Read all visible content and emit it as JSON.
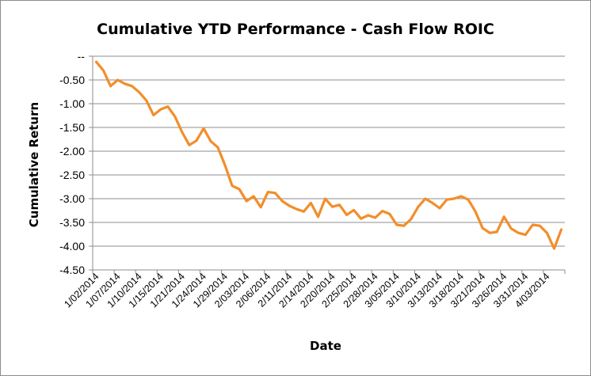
{
  "chart_data": {
    "type": "line",
    "title": "Cumulative YTD Performance - Cash Flow ROIC",
    "xlabel": "Date",
    "ylabel": "Cumulative Return",
    "ylim": [
      -4.5,
      0
    ],
    "y_ticks": [
      0,
      -0.5,
      -1,
      -1.5,
      -2,
      -2.5,
      -3,
      -3.5,
      -4,
      -4.5
    ],
    "y_tick_labels": [
      "--",
      "-0.50",
      "-1.00",
      "-1.50",
      "-2.00",
      "-2.50",
      "-3.00",
      "-3.50",
      "-4.00",
      "-4.50"
    ],
    "x_tick_labels": [
      "1/02/2014",
      "1/07/2014",
      "1/10/2014",
      "1/15/2014",
      "1/21/2014",
      "1/24/2014",
      "1/29/2014",
      "2/03/2014",
      "2/06/2014",
      "2/11/2014",
      "2/14/2014",
      "2/20/2014",
      "2/25/2014",
      "2/28/2014",
      "3/05/2014",
      "3/10/2014",
      "3/13/2014",
      "3/18/2014",
      "3/21/2014",
      "3/26/2014",
      "3/31/2014",
      "4/03/2014"
    ],
    "x_tick_every": 3,
    "grid": true,
    "legend": "none",
    "color": "#F28E2B",
    "values": [
      -0.12,
      -0.3,
      -0.63,
      -0.5,
      -0.58,
      -0.63,
      -0.76,
      -0.93,
      -1.24,
      -1.12,
      -1.06,
      -1.27,
      -1.6,
      -1.87,
      -1.78,
      -1.52,
      -1.79,
      -1.92,
      -2.3,
      -2.73,
      -2.8,
      -3.05,
      -2.95,
      -3.18,
      -2.86,
      -2.88,
      -3.05,
      -3.15,
      -3.22,
      -3.27,
      -3.09,
      -3.38,
      -3.0,
      -3.17,
      -3.13,
      -3.34,
      -3.24,
      -3.42,
      -3.35,
      -3.4,
      -3.26,
      -3.32,
      -3.55,
      -3.57,
      -3.43,
      -3.17,
      -3.0,
      -3.09,
      -3.2,
      -3.02,
      -3.0,
      -2.95,
      -3.02,
      -3.27,
      -3.62,
      -3.72,
      -3.7,
      -3.38,
      -3.63,
      -3.72,
      -3.76,
      -3.55,
      -3.57,
      -3.72,
      -4.05,
      -3.65
    ]
  }
}
